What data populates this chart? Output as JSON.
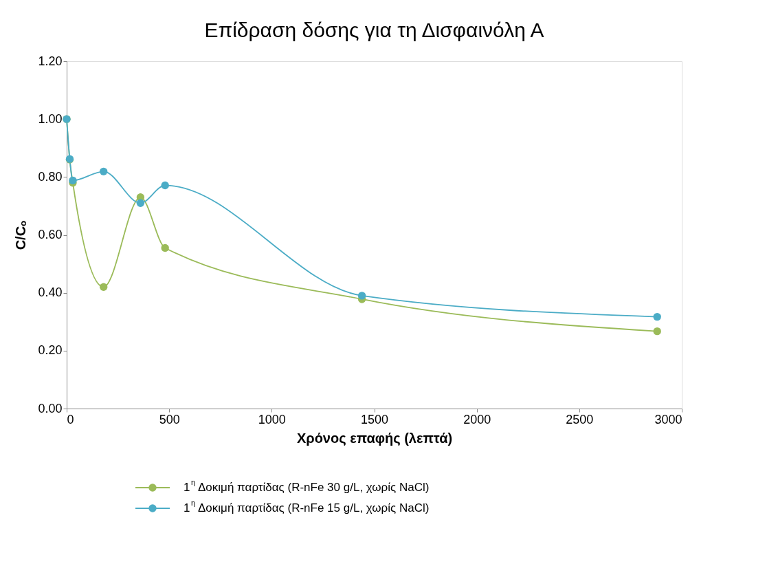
{
  "chart_data": {
    "type": "line",
    "title": "Επίδραση δόσης για τη Δισφαινόλη Α",
    "xlabel": "Χρόνος επαφής (λεπτά)",
    "ylabel": "C/Cₒ",
    "x": [
      0,
      15,
      30,
      180,
      360,
      480,
      1440,
      2880
    ],
    "series": [
      {
        "name": "1$^{η}$ Δοκιμή παρτίδας (R-nFe 30 g/L, χωρίς NaCl)",
        "color": "#9bbb59",
        "values": [
          1.0,
          0.86,
          0.78,
          0.42,
          0.73,
          0.555,
          0.378,
          0.267
        ]
      },
      {
        "name": "1$^{η}$ Δοκιμή παρτίδας  (R-nFe 15 g/L, χωρίς NaCl)",
        "color": "#4bacc6",
        "values": [
          1.0,
          0.862,
          0.788,
          0.819,
          0.71,
          0.771,
          0.39,
          0.317
        ]
      }
    ],
    "xlim": [
      0,
      3000
    ],
    "xticks": [
      0,
      500,
      1000,
      1500,
      2000,
      2500,
      3000
    ],
    "ylim": [
      0,
      1.2
    ],
    "yticks": [
      {
        "value": 0,
        "label": "0.00"
      },
      {
        "value": 0.2,
        "label": "0.20"
      },
      {
        "value": 0.4,
        "label": "0.40"
      },
      {
        "value": 0.6,
        "label": "0.60"
      },
      {
        "value": 0.8,
        "label": "0.80"
      },
      {
        "value": 1.0,
        "label": "1.00"
      },
      {
        "value": 1.2,
        "label": "1.20"
      }
    ],
    "grid": false,
    "legend": "bottom",
    "marker": "circle",
    "line_style": "solid"
  }
}
